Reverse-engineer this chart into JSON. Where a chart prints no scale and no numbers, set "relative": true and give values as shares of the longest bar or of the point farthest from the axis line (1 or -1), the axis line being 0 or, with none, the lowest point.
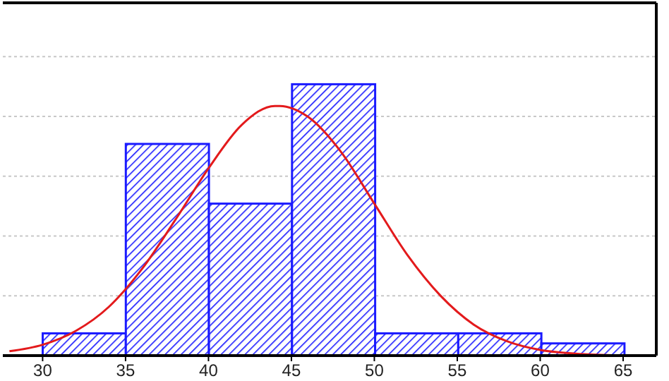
{
  "chart_data": {
    "type": "histogram",
    "relative": true,
    "bins": [
      30,
      35,
      40,
      45,
      50,
      55,
      60,
      65
    ],
    "values": [
      0.082,
      0.78,
      0.56,
      1,
      0.082,
      0.082,
      0.045
    ],
    "color": "#1a1aff",
    "series": [
      {
        "type": "line",
        "color": "#e31a1c",
        "x": [
          28,
          30,
          32,
          34,
          36,
          38,
          40,
          42,
          44,
          44.3,
          46,
          48,
          50,
          52,
          54,
          56,
          58,
          60,
          62,
          64,
          66
        ],
        "values": [
          0.016,
          0.04,
          0.091,
          0.18,
          0.32,
          0.5,
          0.69,
          0.85,
          0.92,
          0.92,
          0.88,
          0.75,
          0.56,
          0.37,
          0.22,
          0.114,
          0.053,
          0.021,
          0.008,
          0.002,
          0
        ]
      }
    ],
    "xlim": [
      27.6,
      67
    ],
    "xticks": [
      30,
      35,
      40,
      45,
      50,
      55,
      60,
      65
    ],
    "grid": "y",
    "marker": "none",
    "line_style": "solid"
  }
}
